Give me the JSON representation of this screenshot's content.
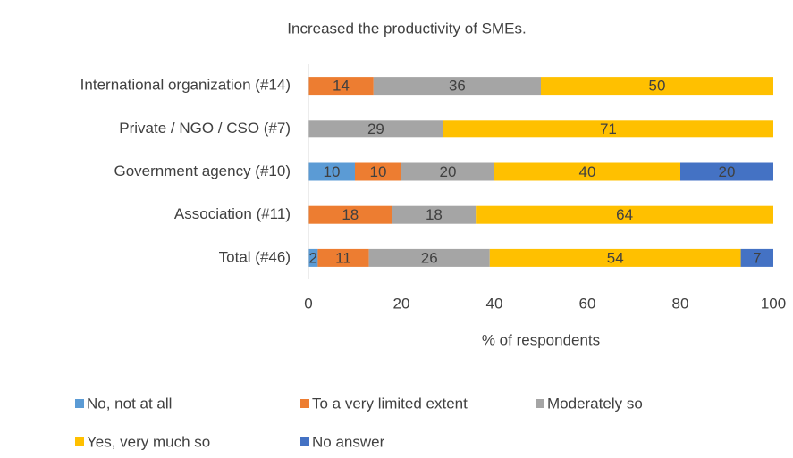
{
  "chart_data": {
    "type": "stacked_barh",
    "title": "Increased the productivity of SMEs.",
    "x_label": "% of respondents",
    "categories": [
      "International organization (#14)",
      "Private / NGO / CSO (#7)",
      "Government agency (#10)",
      "Association (#11)",
      "Total (#46)"
    ],
    "series": [
      {
        "name": "No, not at all",
        "color": "#5b9bd5",
        "values": [
          0,
          0,
          10,
          0,
          2
        ]
      },
      {
        "name": "To a very limited extent",
        "color": "#ed7d31",
        "values": [
          14,
          0,
          10,
          18,
          11
        ]
      },
      {
        "name": "Moderately so",
        "color": "#a5a5a5",
        "values": [
          36,
          29,
          20,
          18,
          26
        ]
      },
      {
        "name": "Yes, very much so",
        "color": "#ffc000",
        "values": [
          50,
          71,
          40,
          64,
          54
        ]
      },
      {
        "name": "No answer",
        "color": "#4472c4",
        "values": [
          0,
          0,
          20,
          0,
          7
        ]
      }
    ],
    "xlim": [
      0,
      100
    ],
    "xticks": [
      0,
      20,
      40,
      60,
      80,
      100
    ],
    "grid": false,
    "legend": "bottom"
  }
}
